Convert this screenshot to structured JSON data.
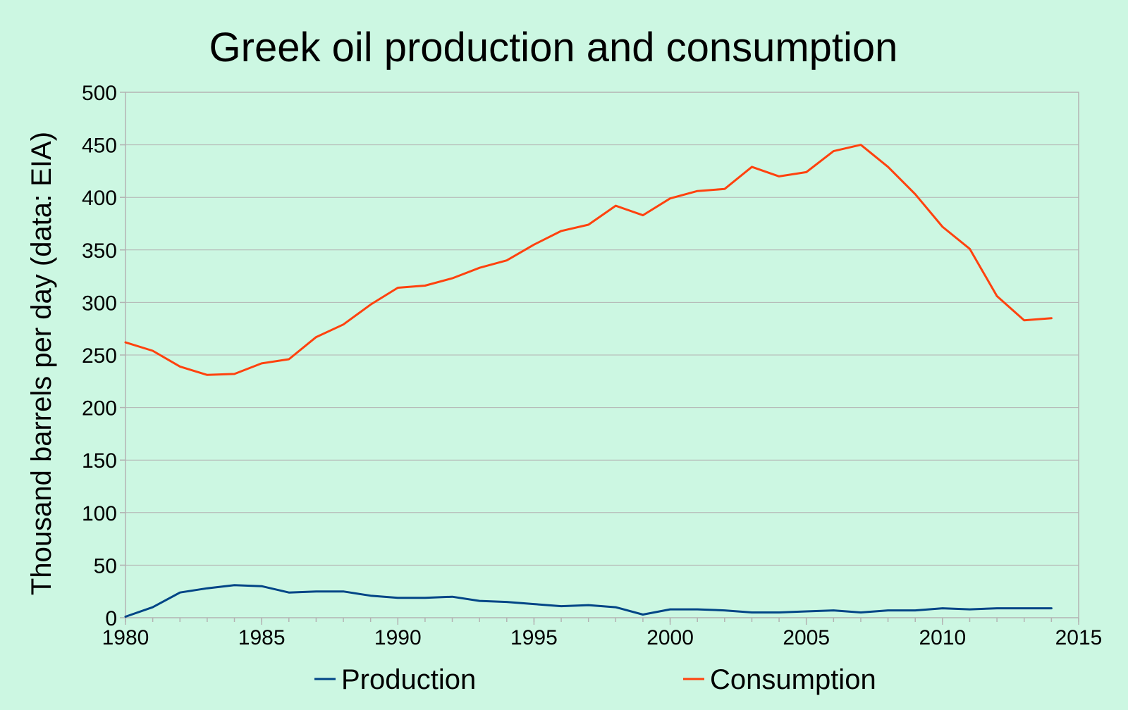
{
  "chart_data": {
    "type": "line",
    "title": "Greek oil production and consumption",
    "xlabel": "",
    "ylabel": "Thousand barrels per day (data: EIA)",
    "xlim": [
      1980,
      2015
    ],
    "ylim": [
      0,
      500
    ],
    "x_ticks": [
      "1980",
      "1985",
      "1990",
      "1995",
      "2000",
      "2005",
      "2010",
      "2015"
    ],
    "y_ticks": [
      "0",
      "50",
      "100",
      "150",
      "200",
      "250",
      "300",
      "350",
      "400",
      "450",
      "500"
    ],
    "grid": true,
    "legend_position": "bottom",
    "x": [
      1980,
      1981,
      1982,
      1983,
      1984,
      1985,
      1986,
      1987,
      1988,
      1989,
      1990,
      1991,
      1992,
      1993,
      1994,
      1995,
      1996,
      1997,
      1998,
      1999,
      2000,
      2001,
      2002,
      2003,
      2004,
      2005,
      2006,
      2007,
      2008,
      2009,
      2010,
      2011,
      2012,
      2013,
      2014
    ],
    "series": [
      {
        "name": "Production",
        "color": "#004586",
        "values": [
          1,
          10,
          24,
          28,
          31,
          30,
          24,
          25,
          25,
          21,
          19,
          19,
          20,
          16,
          15,
          13,
          11,
          12,
          10,
          3,
          8,
          8,
          7,
          5,
          5,
          6,
          7,
          5,
          7,
          7,
          9,
          8,
          9,
          9,
          9
        ]
      },
      {
        "name": "Consumption",
        "color": "#ff420e",
        "values": [
          262,
          254,
          239,
          231,
          232,
          242,
          246,
          267,
          279,
          298,
          314,
          316,
          323,
          333,
          340,
          355,
          368,
          374,
          392,
          383,
          399,
          406,
          408,
          429,
          420,
          424,
          444,
          450,
          429,
          403,
          372,
          351,
          306,
          283,
          285
        ]
      }
    ]
  }
}
